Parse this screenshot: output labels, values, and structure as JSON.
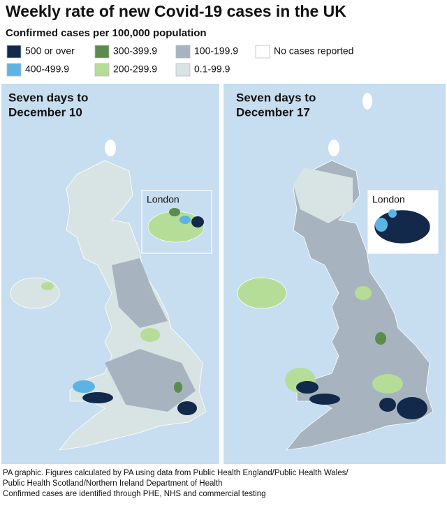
{
  "header": {
    "title": "Weekly rate of new Covid-19 cases in the UK",
    "subtitle": "Confirmed cases per 100,000 population"
  },
  "legend": {
    "items": [
      {
        "label": "500 or over",
        "color": "#13294b"
      },
      {
        "label": "400-499.9",
        "color": "#5db4e4"
      },
      {
        "label": "300-399.9",
        "color": "#5b8c4e"
      },
      {
        "label": "200-299.9",
        "color": "#b6dd98"
      },
      {
        "label": "100-199.9",
        "color": "#a7b4bf"
      },
      {
        "label": "0.1-99.9",
        "color": "#d8e4e4"
      },
      {
        "label": "No cases reported",
        "color": "#ffffff"
      }
    ]
  },
  "panels": [
    {
      "title_lines": [
        "Seven days to",
        "December 10"
      ],
      "inset_label": "London"
    },
    {
      "title_lines": [
        "Seven days to",
        "December 17"
      ],
      "inset_label": "London"
    }
  ],
  "footer": {
    "lines": [
      "PA graphic. Figures calculated by PA using data from Public Health England/Public Health Wales/",
      "Public Health Scotland/Northern Ireland Department of Health",
      "Confirmed cases are identified through PHE, NHS and commercial testing"
    ]
  }
}
